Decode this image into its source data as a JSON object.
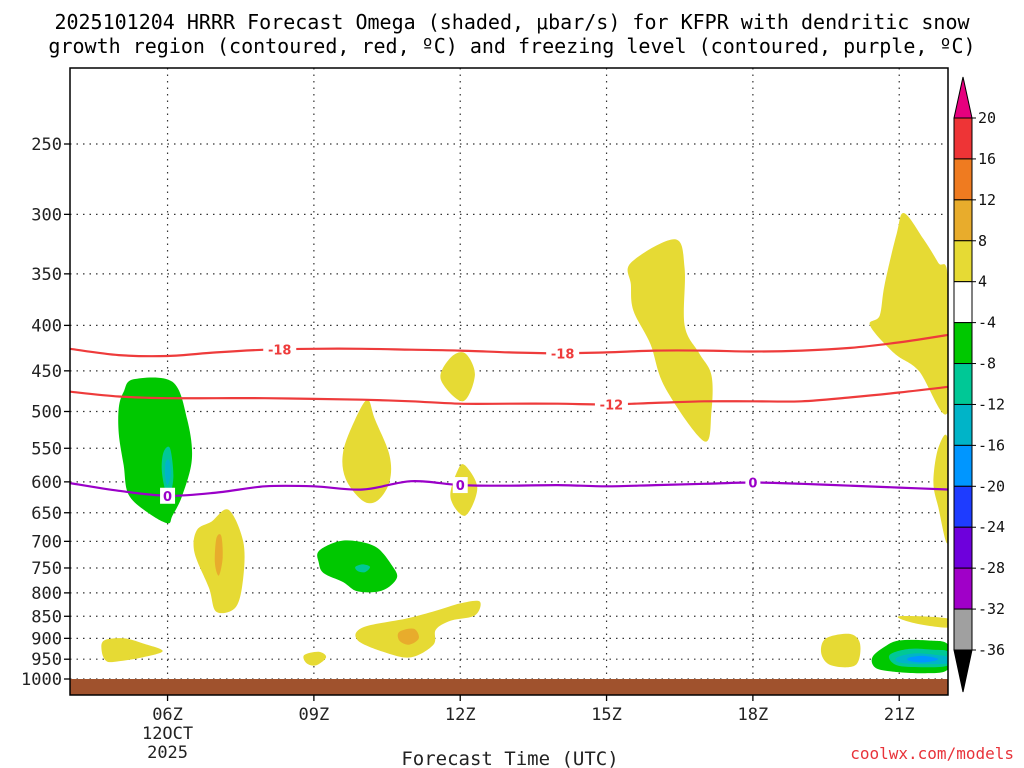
{
  "chart_data": {
    "type": "contour",
    "title_line1": "2025101204 HRRR Forecast Omega (shaded, μbar/s) for KFPR with dendritic snow",
    "title_line2": "growth region (contoured, red, ºC) and freezing level (contoured, purple, ºC)",
    "xlabel": "Forecast Time (UTC)",
    "credit": "coolwx.com/models",
    "x_ticks": [
      {
        "hour": 6,
        "label": "06Z",
        "sub1": "12OCT",
        "sub2": "2025"
      },
      {
        "hour": 9,
        "label": "09Z"
      },
      {
        "hour": 12,
        "label": "12Z"
      },
      {
        "hour": 15,
        "label": "15Z"
      },
      {
        "hour": 18,
        "label": "18Z"
      },
      {
        "hour": 21,
        "label": "21Z"
      }
    ],
    "x_range_hours": [
      4,
      22
    ],
    "y_ticks": [
      250,
      300,
      350,
      400,
      450,
      500,
      550,
      600,
      650,
      700,
      750,
      800,
      850,
      900,
      950,
      1000
    ],
    "y_range_hPa": [
      200,
      1025
    ],
    "ground_level_hPa": 1000,
    "colorbar": {
      "ticks": [
        "20",
        "16",
        "12",
        "8",
        "4",
        "-4",
        "-8",
        "-12",
        "-16",
        "-20",
        "-24",
        "-28",
        "-32",
        "-36"
      ],
      "colors": [
        "#e6007e",
        "#ee3436",
        "#ef7b20",
        "#e8ac2c",
        "#e6da34",
        "#ffffff",
        "#00c800",
        "#00c896",
        "#00b4c8",
        "#0096ff",
        "#1e3cff",
        "#6e00dc",
        "#a000c8",
        "#a0a0a0",
        "#000000"
      ]
    },
    "shade_colors": {
      "c4": "#e6da34",
      "c8": "#e8ac2c",
      "m4": "#00c800",
      "m8": "#00c896",
      "m12": "#00b4c8",
      "m16": "#0096ff",
      "ground": "#a0522d"
    },
    "contours": [
      {
        "name": "-18",
        "color": "#ee3b3b",
        "points": [
          [
            4,
            425
          ],
          [
            5,
            432
          ],
          [
            6,
            433
          ],
          [
            7,
            429
          ],
          [
            8,
            426
          ],
          [
            9,
            425
          ],
          [
            10,
            425
          ],
          [
            11,
            426
          ],
          [
            12,
            427
          ],
          [
            13,
            429
          ],
          [
            14,
            430
          ],
          [
            15,
            429
          ],
          [
            16,
            427
          ],
          [
            17,
            427
          ],
          [
            18,
            428
          ],
          [
            19,
            427
          ],
          [
            20,
            424
          ],
          [
            21,
            418
          ],
          [
            22,
            410
          ]
        ],
        "labels": [
          {
            "hour": 8.3,
            "p": 426,
            "text": "-18"
          },
          {
            "hour": 14.1,
            "p": 430,
            "text": "-18"
          }
        ]
      },
      {
        "name": "-12",
        "color": "#ee3b3b",
        "points": [
          [
            4,
            475
          ],
          [
            5,
            481
          ],
          [
            6,
            483
          ],
          [
            7,
            483
          ],
          [
            8,
            483
          ],
          [
            9,
            484
          ],
          [
            10,
            485
          ],
          [
            11,
            487
          ],
          [
            12,
            490
          ],
          [
            13,
            490
          ],
          [
            14,
            490
          ],
          [
            15,
            491
          ],
          [
            16,
            489
          ],
          [
            17,
            487
          ],
          [
            18,
            487
          ],
          [
            19,
            487
          ],
          [
            20,
            482
          ],
          [
            21,
            476
          ],
          [
            22,
            469
          ]
        ],
        "labels": [
          {
            "hour": 15.1,
            "p": 491,
            "text": "-12"
          }
        ]
      },
      {
        "name": "0",
        "color": "#9a00c8",
        "points": [
          [
            4,
            602
          ],
          [
            5,
            614
          ],
          [
            6,
            622
          ],
          [
            7,
            617
          ],
          [
            8,
            607
          ],
          [
            9,
            607
          ],
          [
            10,
            612
          ],
          [
            11,
            599
          ],
          [
            12,
            605
          ],
          [
            13,
            606
          ],
          [
            14,
            605
          ],
          [
            15,
            607
          ],
          [
            16,
            605
          ],
          [
            17,
            603
          ],
          [
            18,
            601
          ],
          [
            19,
            603
          ],
          [
            20,
            606
          ],
          [
            21,
            609
          ],
          [
            22,
            612
          ]
        ],
        "labels": [
          {
            "hour": 6.0,
            "p": 622,
            "text": "0"
          },
          {
            "hour": 12.0,
            "p": 605,
            "text": "0"
          },
          {
            "hour": 18.0,
            "p": 601,
            "text": "0"
          }
        ]
      }
    ],
    "shaded_regions": [
      {
        "level": "m4",
        "points": [
          [
            5.3,
            460
          ],
          [
            6.1,
            463
          ],
          [
            6.4,
            510
          ],
          [
            6.5,
            565
          ],
          [
            6.3,
            622
          ],
          [
            6.1,
            655
          ],
          [
            6.0,
            668
          ],
          [
            5.6,
            650
          ],
          [
            5.2,
            620
          ],
          [
            5.1,
            575
          ],
          [
            5.0,
            530
          ],
          [
            5.0,
            495
          ],
          [
            5.1,
            475
          ]
        ]
      },
      {
        "level": "m8",
        "points": [
          [
            5.92,
            555
          ],
          [
            6.05,
            550
          ],
          [
            6.12,
            590
          ],
          [
            6.05,
            620
          ],
          [
            5.95,
            612
          ],
          [
            5.88,
            580
          ]
        ]
      },
      {
        "level": "m12",
        "points": [
          [
            5.96,
            570
          ],
          [
            6.04,
            568
          ],
          [
            6.06,
            590
          ],
          [
            6.0,
            605
          ],
          [
            5.95,
            592
          ]
        ]
      },
      {
        "level": "c4",
        "points": [
          [
            7.25,
            645
          ],
          [
            7.55,
            700
          ],
          [
            7.55,
            770
          ],
          [
            7.4,
            830
          ],
          [
            7.0,
            840
          ],
          [
            6.85,
            790
          ],
          [
            6.55,
            720
          ],
          [
            6.6,
            680
          ],
          [
            6.9,
            665
          ]
        ]
      },
      {
        "level": "c8",
        "points": [
          [
            7.0,
            695
          ],
          [
            7.1,
            690
          ],
          [
            7.13,
            730
          ],
          [
            7.05,
            765
          ],
          [
            6.97,
            740
          ]
        ]
      },
      {
        "level": "m4",
        "points": [
          [
            9.1,
            718
          ],
          [
            9.5,
            700
          ],
          [
            9.9,
            700
          ],
          [
            10.3,
            712
          ],
          [
            10.6,
            745
          ],
          [
            10.7,
            770
          ],
          [
            10.4,
            795
          ],
          [
            9.9,
            797
          ],
          [
            9.6,
            778
          ],
          [
            9.2,
            760
          ],
          [
            9.1,
            740
          ]
        ]
      },
      {
        "level": "m8",
        "points": [
          [
            9.85,
            748
          ],
          [
            10.0,
            743
          ],
          [
            10.15,
            748
          ],
          [
            10.05,
            758
          ],
          [
            9.9,
            756
          ]
        ]
      },
      {
        "level": "c4",
        "points": [
          [
            10.1,
            485
          ],
          [
            10.25,
            510
          ],
          [
            10.55,
            560
          ],
          [
            10.55,
            600
          ],
          [
            10.3,
            630
          ],
          [
            10.0,
            630
          ],
          [
            9.65,
            595
          ],
          [
            9.6,
            555
          ],
          [
            9.85,
            510
          ]
        ]
      },
      {
        "level": "c4",
        "points": [
          [
            11.8,
            435
          ],
          [
            12.1,
            430
          ],
          [
            12.3,
            455
          ],
          [
            12.05,
            487
          ],
          [
            11.6,
            460
          ]
        ]
      },
      {
        "level": "c4",
        "points": [
          [
            11.95,
            582
          ],
          [
            12.1,
            575
          ],
          [
            12.35,
            610
          ],
          [
            12.1,
            655
          ],
          [
            11.8,
            625
          ]
        ]
      },
      {
        "level": "c4",
        "points": [
          [
            10.9,
            855
          ],
          [
            11.5,
            838
          ],
          [
            12.0,
            822
          ],
          [
            12.4,
            818
          ],
          [
            12.3,
            848
          ],
          [
            11.8,
            860
          ],
          [
            11.5,
            880
          ],
          [
            11.45,
            915
          ],
          [
            11.0,
            945
          ],
          [
            10.5,
            935
          ],
          [
            9.9,
            905
          ],
          [
            10.0,
            875
          ]
        ]
      },
      {
        "level": "c8",
        "points": [
          [
            10.75,
            885
          ],
          [
            11.05,
            878
          ],
          [
            11.15,
            900
          ],
          [
            10.95,
            915
          ],
          [
            10.75,
            905
          ]
        ]
      },
      {
        "level": "c4",
        "points": [
          [
            4.7,
            905
          ],
          [
            5.1,
            900
          ],
          [
            5.5,
            912
          ],
          [
            5.9,
            930
          ],
          [
            5.5,
            945
          ],
          [
            5.0,
            955
          ],
          [
            4.75,
            955
          ],
          [
            4.65,
            930
          ]
        ]
      },
      {
        "level": "c4",
        "points": [
          [
            8.8,
            940
          ],
          [
            9.1,
            932
          ],
          [
            9.25,
            945
          ],
          [
            9.05,
            965
          ],
          [
            8.85,
            960
          ]
        ]
      },
      {
        "level": "c4",
        "points": [
          [
            15.5,
            340
          ],
          [
            16.4,
            320
          ],
          [
            16.6,
            345
          ],
          [
            16.6,
            400
          ],
          [
            16.9,
            430
          ],
          [
            17.15,
            455
          ],
          [
            17.15,
            500
          ],
          [
            17.0,
            540
          ],
          [
            16.2,
            470
          ],
          [
            15.9,
            420
          ],
          [
            15.55,
            385
          ],
          [
            15.5,
            360
          ]
        ]
      },
      {
        "level": "c4",
        "points": [
          [
            20.6,
            390
          ],
          [
            20.7,
            360
          ],
          [
            20.95,
            315
          ],
          [
            21.1,
            299
          ],
          [
            21.5,
            320
          ],
          [
            21.8,
            340
          ],
          [
            22.0,
            355
          ],
          [
            22.0,
            500
          ],
          [
            21.4,
            450
          ],
          [
            20.9,
            430
          ],
          [
            20.4,
            400
          ]
        ]
      },
      {
        "level": "c4",
        "points": [
          [
            21.8,
            550
          ],
          [
            22.0,
            540
          ],
          [
            22.0,
            700
          ],
          [
            21.8,
            640
          ],
          [
            21.7,
            600
          ]
        ]
      },
      {
        "level": "c4",
        "points": [
          [
            19.5,
            900
          ],
          [
            20.0,
            890
          ],
          [
            20.2,
            915
          ],
          [
            20.1,
            965
          ],
          [
            19.6,
            965
          ],
          [
            19.4,
            935
          ]
        ]
      },
      {
        "level": "c4",
        "points": [
          [
            21.0,
            850
          ],
          [
            22.0,
            855
          ],
          [
            22.0,
            875
          ],
          [
            21.3,
            865
          ]
        ]
      },
      {
        "level": "m4",
        "points": [
          [
            20.45,
            945
          ],
          [
            20.7,
            920
          ],
          [
            21.0,
            905
          ],
          [
            21.6,
            905
          ],
          [
            22.0,
            915
          ],
          [
            22.0,
            975
          ],
          [
            21.5,
            985
          ],
          [
            20.8,
            980
          ],
          [
            20.5,
            970
          ]
        ]
      },
      {
        "level": "m8",
        "points": [
          [
            20.8,
            940
          ],
          [
            21.2,
            925
          ],
          [
            21.7,
            927
          ],
          [
            22.0,
            932
          ],
          [
            22.0,
            965
          ],
          [
            21.5,
            970
          ],
          [
            20.95,
            965
          ]
        ]
      },
      {
        "level": "m12",
        "points": [
          [
            20.95,
            946
          ],
          [
            21.3,
            936
          ],
          [
            21.8,
            940
          ],
          [
            22.0,
            945
          ],
          [
            22.0,
            960
          ],
          [
            21.4,
            962
          ],
          [
            21.0,
            958
          ]
        ]
      },
      {
        "level": "m16",
        "points": [
          [
            21.2,
            946
          ],
          [
            21.5,
            942
          ],
          [
            21.8,
            950
          ],
          [
            21.5,
            958
          ],
          [
            21.2,
            954
          ]
        ]
      }
    ]
  }
}
